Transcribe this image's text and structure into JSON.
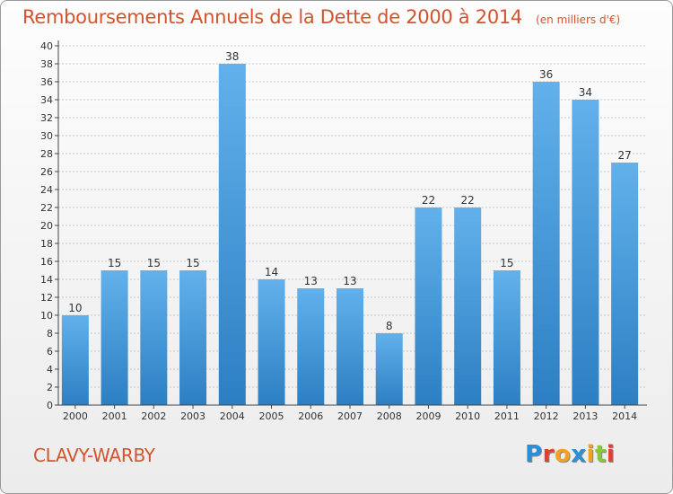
{
  "title": "Remboursements Annuels de la Dette de 2000 à 2014",
  "unit_label": "(en milliers d'€)",
  "commune": "CLAVY-WARBY",
  "logo": {
    "letters": [
      "P",
      "r",
      "o",
      "x",
      "i",
      "t",
      "i"
    ],
    "colors": [
      "#2a8fd6",
      "#e63d2f",
      "#f3a21a",
      "#2a8fd6",
      "#f3a21a",
      "#8cc63f",
      "#e63d2f"
    ]
  },
  "colors": {
    "bar_light": "#62b1ec",
    "bar_dark": "#2c7fc2",
    "axis": "#444444",
    "grid": "#c8c8c8",
    "title": "#d4532c"
  },
  "chart_data": {
    "type": "bar",
    "title": "Remboursements Annuels de la Dette de 2000 à 2014",
    "xlabel": "",
    "ylabel": "",
    "ylim": [
      0,
      40
    ],
    "ytick_step": 2,
    "grid": true,
    "categories": [
      "2000",
      "2001",
      "2002",
      "2003",
      "2004",
      "2005",
      "2006",
      "2007",
      "2008",
      "2009",
      "2010",
      "2011",
      "2012",
      "2013",
      "2014"
    ],
    "values": [
      10,
      15,
      15,
      15,
      38,
      14,
      13,
      13,
      8,
      22,
      22,
      15,
      36,
      34,
      27
    ]
  }
}
